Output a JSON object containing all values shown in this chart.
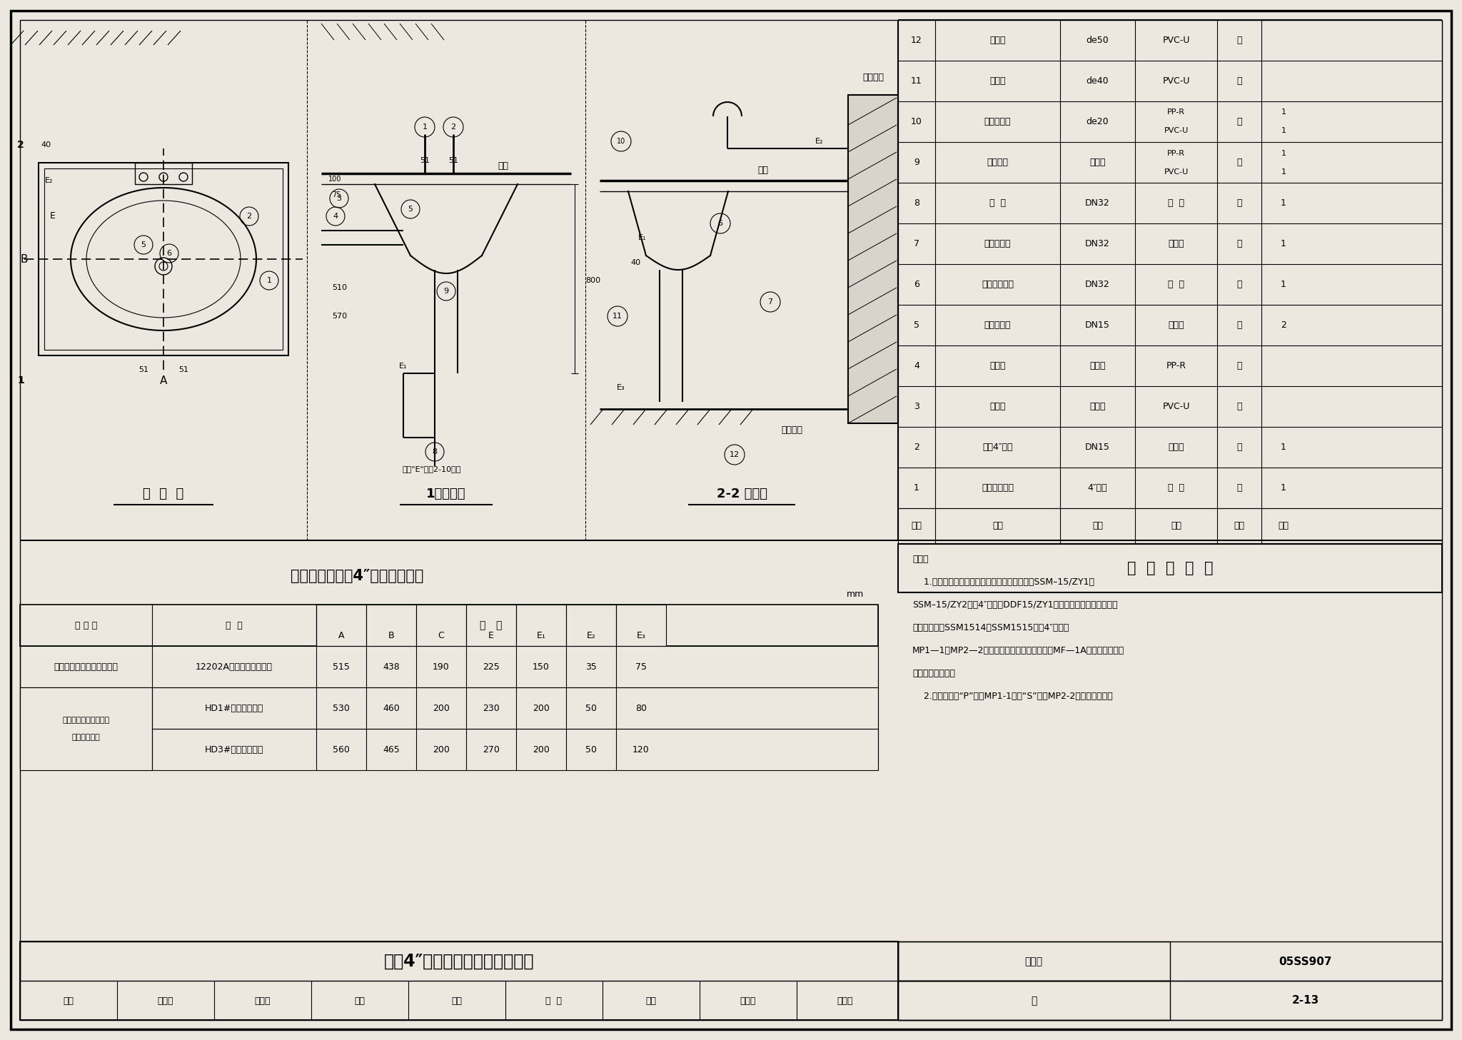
{
  "title": "双柄4″龙头台上式洗脸盆安装图",
  "figure_number": "05SS907",
  "page": "2-13",
  "bg_color": "#ede8df",
  "material_table": {
    "header": [
      "编号",
      "名称",
      "规格",
      "材料",
      "单位",
      "数量"
    ],
    "footer": "主  要  材  料  表",
    "rows": [
      [
        "12",
        "排水管",
        "de50",
        "PVC-U",
        "米",
        ""
      ],
      [
        "11",
        "排水管",
        "de40",
        "PVC-U",
        "米",
        ""
      ],
      [
        "10",
        "内螺纹弯头",
        "de20",
        "PP-R\nPVC-U",
        "个",
        "1\n1"
      ],
      [
        "9",
        "异径三通",
        "按设计",
        "PP-R\nPVC-U",
        "个",
        "1\n1"
      ],
      [
        "8",
        "单  盖",
        "DN32",
        "配  套",
        "个",
        "1"
      ],
      [
        "7",
        "瓶式存水弯",
        "DN32",
        "钢锕罗",
        "个",
        "1"
      ],
      [
        "6",
        "提拉排水装置",
        "DN32",
        "金  属",
        "个",
        "1"
      ],
      [
        "5",
        "角式截止阀",
        "DN15",
        "钢锕罗",
        "个",
        "2"
      ],
      [
        "4",
        "热水管",
        "按设计",
        "PP-R",
        "米",
        ""
      ],
      [
        "3",
        "冷水管",
        "按设计",
        "PVC-U",
        "米",
        ""
      ],
      [
        "2",
        "双朄4″龙头",
        "DN15",
        "钢锕罗",
        "个",
        "1"
      ],
      [
        "1",
        "台上式洗脸盆",
        "4″三孔",
        "陌  瓷",
        "个",
        "1"
      ]
    ]
  },
  "size_table_title": "台上式洗脸盆（4″三孔）尺寸表",
  "size_headers": [
    "生 产 厂",
    "型  号",
    "A",
    "B",
    "C",
    "E",
    "E₁",
    "E₂",
    "E₃"
  ],
  "size_rows": [
    [
      "重庆四维瓷业股份有限公司",
      "12202A海伦台上式洗脸盆",
      "515",
      "438",
      "190",
      "225",
      "150",
      "35",
      "75"
    ],
    [
      "唐山尧达陶瓷（集团）|股份有限公司",
      "HD1#台上式洗脸盆",
      "530",
      "460",
      "200",
      "230",
      "200",
      "50",
      "80"
    ],
    [
      "",
      "HD3#台上式洗脸盆",
      "560",
      "465",
      "200",
      "270",
      "200",
      "50",
      "120"
    ]
  ],
  "notes": [
    "说明：",
    "    1.本图系拡广西中富洁具装置有限公司生产的SSM–15/ZY1、",
    "SSM–15/ZY2双朄4″龙头、DDF15/ZY1陶瓷围芯阀及广西平南水暖",
    "器材厂生产的SSM1514、SSM1515双朄4″龙头、",
    "MP1—1、MP2—2提拉排水装置、瓶式存水弯、MF—1A陶瓷围芯阀等五",
    "金配件尺寸制造。",
    "    2.存水弯采用“P”型（MP1-1）或“S”型（MP2-2）由设计决定。"
  ],
  "review_row": [
    "审核",
    "鲁宏深",
    "山主干",
    "校对",
    "张森",
    "张  扏",
    "设计",
    "张文华",
    "卢又华"
  ]
}
